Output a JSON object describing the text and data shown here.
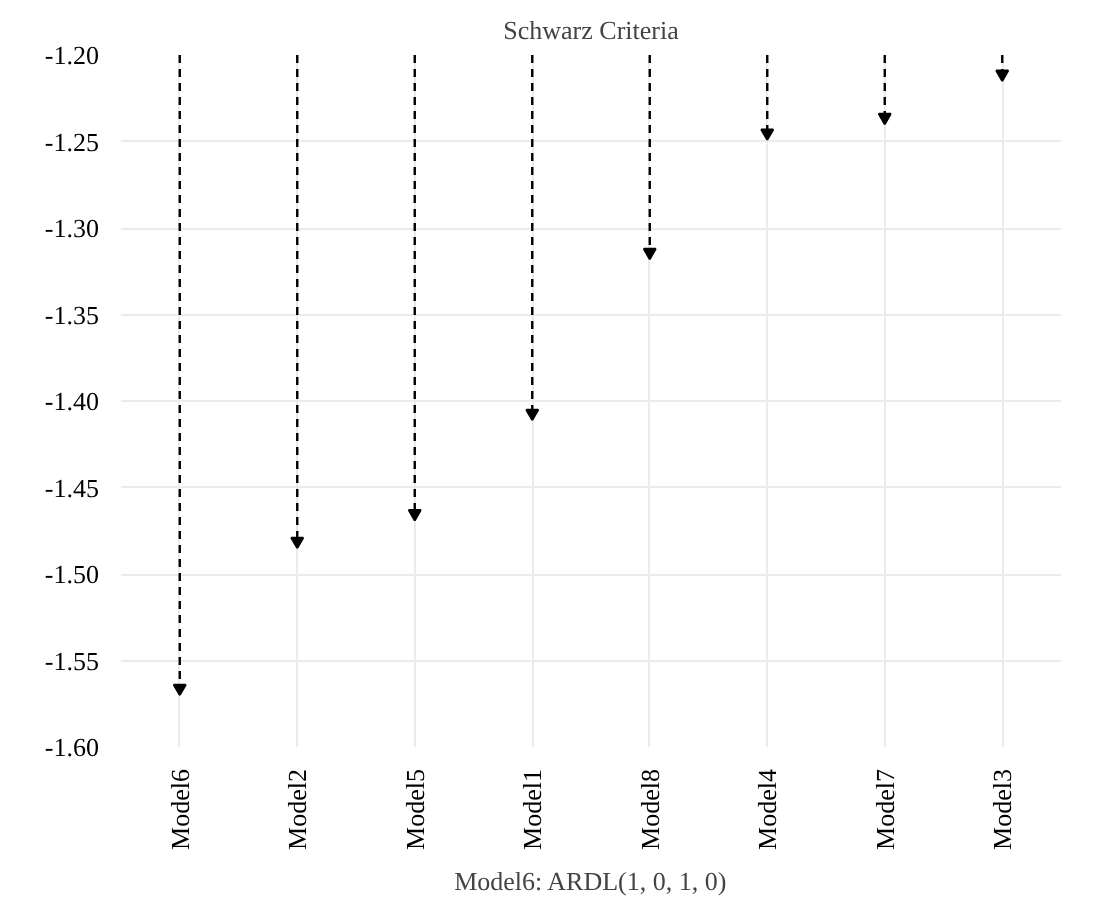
{
  "chart_data": {
    "type": "lollipop",
    "title": "Schwarz Criteria",
    "xlabel": "Model6: ARDL(1, 0, 1, 0)",
    "categories": [
      "Model6",
      "Model2",
      "Model5",
      "Model1",
      "Model8",
      "Model4",
      "Model7",
      "Model3"
    ],
    "values": [
      -1.566,
      -1.481,
      -1.465,
      -1.407,
      -1.314,
      -1.245,
      -1.236,
      -1.211
    ],
    "color": "#000000",
    "marker": "triangle",
    "line_style": "dashed",
    "ylim": [
      -1.6,
      -1.2
    ],
    "yticks": [
      {
        "value": -1.6,
        "label": "-1.60"
      },
      {
        "value": -1.55,
        "label": "-1.55"
      },
      {
        "value": -1.5,
        "label": "-1.50"
      },
      {
        "value": -1.45,
        "label": "-1.45"
      },
      {
        "value": -1.4,
        "label": "-1.40"
      },
      {
        "value": -1.35,
        "label": "-1.35"
      },
      {
        "value": -1.3,
        "label": "-1.30"
      },
      {
        "value": -1.25,
        "label": "-1.25"
      },
      {
        "value": -1.2,
        "label": "-1.20"
      }
    ],
    "grid": true
  }
}
